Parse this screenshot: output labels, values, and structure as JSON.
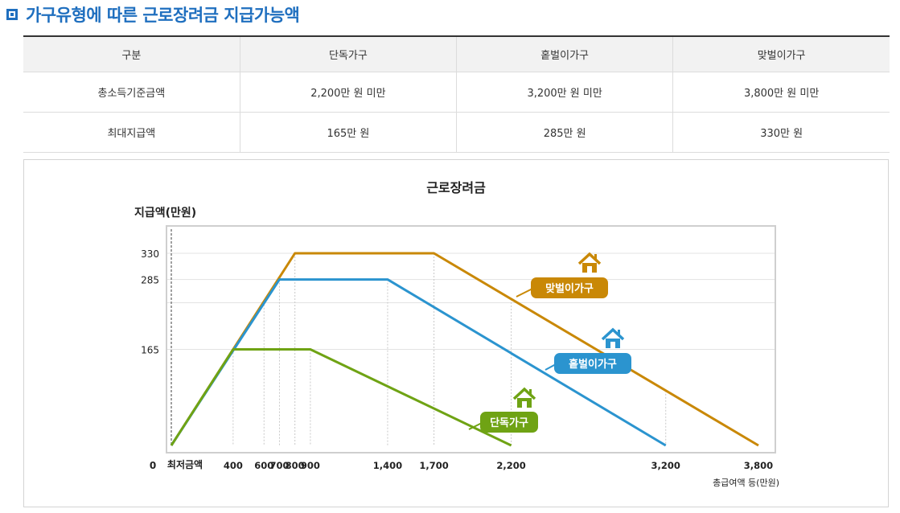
{
  "header": {
    "title": "가구유형에 따른 근로장려금 지급가능액"
  },
  "table": {
    "headers": [
      "구분",
      "단독가구",
      "홑벌이가구",
      "맞벌이가구"
    ],
    "rows": [
      [
        "총소득기준금액",
        "2,200만 원 미만",
        "3,200만 원 미만",
        "3,800만 원 미만"
      ],
      [
        "최대지급액",
        "165만 원",
        "285만 원",
        "330만 원"
      ]
    ]
  },
  "chart_data": {
    "type": "line",
    "title": "근로장려금",
    "ylabel": "지급액(만원)",
    "xlabel": "총급여액 등(만원)",
    "x_origin_label": "0",
    "x_min_label": "최저금액",
    "x_ticks": [
      400,
      600,
      700,
      800,
      900,
      1400,
      1700,
      2200,
      3200,
      3800
    ],
    "x_tick_labels": [
      "400",
      "600",
      "700",
      "800",
      "900",
      "1,400",
      "1,700",
      "2,200",
      "3,200",
      "3,800"
    ],
    "y_ticks": [
      165,
      285,
      330
    ],
    "xlim": [
      0,
      3800
    ],
    "ylim": [
      0,
      330
    ],
    "grid": true,
    "series": [
      {
        "name": "맞벌이가구",
        "color": "#c98806",
        "x": [
          0,
          800,
          1700,
          3800
        ],
        "y": [
          0,
          330,
          330,
          0
        ]
      },
      {
        "name": "홑벌이가구",
        "color": "#2b94cf",
        "x": [
          0,
          700,
          1400,
          3200
        ],
        "y": [
          0,
          285,
          285,
          0
        ]
      },
      {
        "name": "단독가구",
        "color": "#6fa314",
        "x": [
          0,
          400,
          900,
          2200
        ],
        "y": [
          0,
          165,
          165,
          0
        ]
      }
    ],
    "legend_placement": "inline labels with house icons",
    "icon": "house-icon"
  }
}
